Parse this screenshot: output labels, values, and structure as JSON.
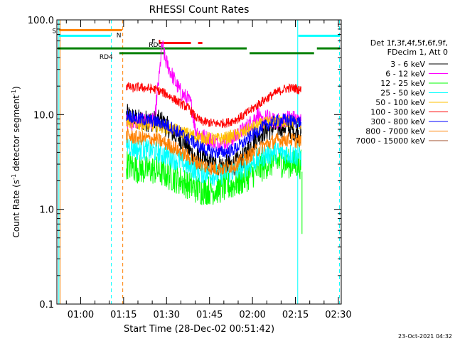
{
  "chart_data": {
    "type": "line",
    "title": "RHESSI Count Rates",
    "xlabel": "Start Time (28-Dec-02 00:51:42)",
    "ylabel": "Count Rate (s",
    "ylabel_sup1": "-1",
    "ylabel_mid": " detector segment",
    "ylabel_sup2": "-1",
    "ylabel_end": ")",
    "footer": "23-Oct-2021 04:32",
    "y_scale": "log",
    "ylim": [
      0.1,
      100.0
    ],
    "xlim_minutes": [
      51.7,
      151.0
    ],
    "x_ticks": [
      {
        "label": "01:00",
        "min": 60
      },
      {
        "label": "01:15",
        "min": 75
      },
      {
        "label": "01:30",
        "min": 90
      },
      {
        "label": "01:45",
        "min": 105
      },
      {
        "label": "02:00",
        "min": 120
      },
      {
        "label": "02:15",
        "min": 135
      },
      {
        "label": "02:30",
        "min": 150
      }
    ],
    "y_ticks": [
      {
        "label": "100.0",
        "v": 100
      },
      {
        "label": "10.0",
        "v": 10
      },
      {
        "label": "1.0",
        "v": 1
      },
      {
        "label": "0.1",
        "v": 0.1
      }
    ],
    "legend_header": [
      "Det 1f,3f,4f,5f,6f,9f,",
      "FDecim 1, Att 0"
    ],
    "legend_position": "right",
    "series": [
      {
        "name": "3 - 6 keV",
        "color": "#000000",
        "x": [
          76,
          78,
          80,
          83,
          86,
          88,
          90,
          93,
          96,
          98,
          100,
          102,
          105,
          108,
          111,
          114,
          117,
          120,
          123,
          126,
          129,
          132,
          134,
          136,
          137
        ],
        "y": [
          10,
          9.2,
          8.7,
          8.6,
          8.5,
          8.6,
          7.5,
          6.0,
          5.3,
          4.2,
          3.5,
          3.4,
          3.0,
          2.9,
          2.9,
          3.0,
          3.5,
          5.0,
          6.5,
          7.0,
          7.5,
          7.5,
          7.0,
          6.5,
          6.0
        ]
      },
      {
        "name": "6 - 12 keV",
        "color": "#ff00ff",
        "x": [
          76,
          78,
          80,
          83,
          86,
          87.5,
          88.5,
          89.5,
          91,
          93,
          95,
          97,
          98.5,
          100,
          102,
          105,
          108,
          111,
          114,
          117,
          120,
          122,
          123,
          125,
          127,
          130,
          133,
          135,
          137
        ],
        "y": [
          8.5,
          8.2,
          8.5,
          8.6,
          8.5,
          25,
          55,
          38,
          30,
          22,
          17,
          15,
          13,
          7,
          6,
          5.5,
          5.0,
          5.2,
          5.8,
          7.0,
          8.5,
          10.5,
          8.0,
          9.5,
          8.5,
          8.5,
          9.5,
          9.0,
          8.5
        ]
      },
      {
        "name": "12 - 25 keV",
        "color": "#00ff00",
        "x": [
          76,
          78,
          80,
          83,
          86,
          89,
          92,
          95,
          98,
          101,
          104,
          107,
          110,
          113,
          116,
          119,
          122,
          125,
          128,
          131,
          134,
          137
        ],
        "y": [
          3.0,
          2.8,
          2.7,
          2.6,
          2.6,
          2.4,
          2.2,
          2.0,
          1.8,
          1.6,
          1.6,
          1.6,
          1.7,
          1.8,
          2.0,
          2.3,
          2.6,
          3.0,
          3.2,
          3.1,
          3.0,
          3.0
        ]
      },
      {
        "name": "25 - 50 keV",
        "color": "#00ffff",
        "x": [
          76,
          78,
          80,
          83,
          86,
          89,
          92,
          95,
          98,
          101,
          104,
          107,
          110,
          113,
          116,
          119,
          122,
          125,
          128,
          131,
          134,
          137
        ],
        "y": [
          5.0,
          4.5,
          4.3,
          4.2,
          4.1,
          3.8,
          3.5,
          3.2,
          2.8,
          2.5,
          2.4,
          2.3,
          2.4,
          2.5,
          2.7,
          3.0,
          3.4,
          3.8,
          4.0,
          4.0,
          3.8,
          3.6
        ]
      },
      {
        "name": "50 - 100 keV",
        "color": "#ffc000",
        "x": [
          76,
          78,
          80,
          83,
          86,
          89,
          92,
          95,
          98,
          101,
          104,
          107,
          110,
          113,
          116,
          119,
          122,
          125,
          128,
          131,
          134,
          137
        ],
        "y": [
          8.5,
          8.2,
          8.0,
          7.8,
          7.6,
          7.4,
          7.0,
          6.6,
          6.2,
          5.8,
          5.6,
          5.5,
          5.6,
          5.9,
          6.3,
          7.0,
          7.7,
          8.2,
          8.5,
          8.5,
          8.3,
          8.0
        ]
      },
      {
        "name": "100 - 300 keV",
        "color": "#ff0000",
        "x": [
          76,
          78,
          80,
          83,
          86,
          89,
          92,
          95,
          98,
          100,
          102,
          105,
          108,
          111,
          114,
          117,
          120,
          123,
          126,
          129,
          132,
          135,
          137
        ],
        "y": [
          20,
          19,
          19.5,
          19,
          18.5,
          17,
          15,
          13,
          11.5,
          9.5,
          8.5,
          8.2,
          8.0,
          8.2,
          8.8,
          9.8,
          11.5,
          13.5,
          15.5,
          17.5,
          19,
          19,
          18
        ]
      },
      {
        "name": "300 - 800 keV",
        "color": "#0000ff",
        "x": [
          76,
          78,
          80,
          83,
          86,
          89,
          92,
          95,
          98,
          101,
          104,
          107,
          110,
          113,
          116,
          119,
          122,
          125,
          128,
          131,
          134,
          137
        ],
        "y": [
          10,
          9.5,
          9.0,
          8.8,
          8.5,
          8.0,
          7.2,
          6.3,
          5.5,
          4.7,
          4.2,
          4.0,
          4.0,
          4.2,
          4.8,
          5.7,
          6.8,
          7.8,
          8.5,
          8.8,
          8.6,
          8.3
        ]
      },
      {
        "name": "800 - 7000 keV",
        "color": "#ff8000",
        "x": [
          76,
          78,
          80,
          83,
          86,
          89,
          92,
          95,
          98,
          101,
          104,
          107,
          110,
          113,
          116,
          119,
          122,
          125,
          128,
          131,
          134,
          137
        ],
        "y": [
          6.0,
          5.8,
          5.7,
          5.6,
          5.5,
          5.1,
          4.6,
          4.0,
          3.5,
          3.1,
          2.8,
          2.7,
          2.7,
          2.9,
          3.2,
          3.7,
          4.3,
          4.9,
          5.3,
          5.5,
          5.4,
          5.2
        ]
      },
      {
        "name": "7000 - 15000 keV",
        "color": "#a0522d",
        "x": [],
        "y": []
      }
    ],
    "status_bars": [
      {
        "label": "S",
        "color": "#ff8000",
        "x0": 52.5,
        "x1": 74.5,
        "y": 78
      },
      {
        "label": "N",
        "color": "#00ffff",
        "x0": 52.5,
        "x1": 70.5,
        "y": 68
      },
      {
        "label": "F",
        "color": "#ff0000",
        "x0": 87.3,
        "x1": 98.5,
        "y": 57
      },
      {
        "label": "",
        "color": "#ff0000",
        "x0": 101.0,
        "x1": 102.5,
        "y": 57
      },
      {
        "label": "",
        "color": "#ff0000",
        "x0": 87.3,
        "x1": 87.8,
        "y": 60
      },
      {
        "label": "",
        "color": "#00ffff",
        "x0": 136.0,
        "x1": 150.5,
        "y": 68
      },
      {
        "label": "RD0",
        "color": "#008000",
        "x0": 52.0,
        "x1": 118.0,
        "y": 50
      },
      {
        "label": "RD4",
        "color": "#008000",
        "x0": 73.5,
        "x1": 89.5,
        "y": 44.5
      },
      {
        "label": "",
        "color": "#008000",
        "x0": 119.0,
        "x1": 141.5,
        "y": 44.5
      },
      {
        "label": "",
        "color": "#008000",
        "x0": 142.5,
        "x1": 150.5,
        "y": 50
      }
    ],
    "vlines": [
      {
        "x": 52.4,
        "color": "#00ffff",
        "style": "solid"
      },
      {
        "x": 52.8,
        "color": "#ff8000",
        "style": "solid"
      },
      {
        "x": 70.7,
        "color": "#00ffff",
        "style": "dashed"
      },
      {
        "x": 74.7,
        "color": "#ff8000",
        "style": "dashed"
      },
      {
        "x": 135.8,
        "color": "#00ffff",
        "style": "solid"
      },
      {
        "x": 150.4,
        "color": "#00ffff",
        "style": "dashed"
      }
    ]
  }
}
